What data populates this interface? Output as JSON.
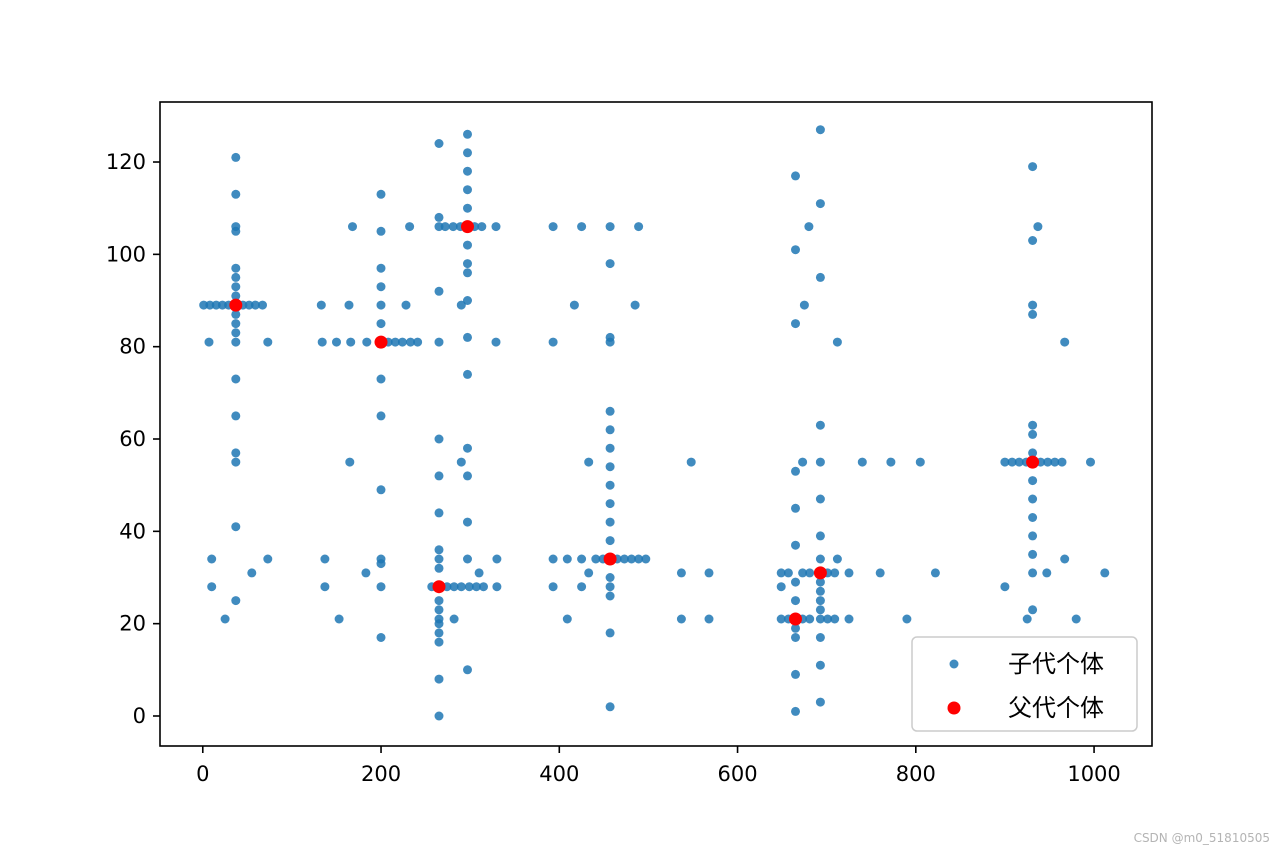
{
  "chart_data": {
    "type": "scatter",
    "xlim": [
      -48,
      1065
    ],
    "ylim": [
      -6.5,
      133
    ],
    "xticks": [
      0,
      200,
      400,
      600,
      800,
      1000
    ],
    "yticks": [
      0,
      20,
      40,
      60,
      80,
      100,
      120
    ],
    "grid": false,
    "legend_position": "bottom-right",
    "series": [
      {
        "name": "子代个体",
        "color": "#1f77b4",
        "points": [
          [
            37,
            121
          ],
          [
            37,
            113
          ],
          [
            37,
            106
          ],
          [
            37,
            105
          ],
          [
            37,
            97
          ],
          [
            37,
            95
          ],
          [
            37,
            93
          ],
          [
            37,
            91
          ],
          [
            37,
            87
          ],
          [
            37,
            85
          ],
          [
            37,
            83
          ],
          [
            37,
            81
          ],
          [
            37,
            73
          ],
          [
            37,
            65
          ],
          [
            37,
            57
          ],
          [
            37,
            55
          ],
          [
            37,
            41
          ],
          [
            37,
            25
          ],
          [
            1,
            89
          ],
          [
            8,
            89
          ],
          [
            15,
            89
          ],
          [
            22,
            89
          ],
          [
            29,
            89
          ],
          [
            45,
            89
          ],
          [
            52,
            89
          ],
          [
            59,
            89
          ],
          [
            67,
            89
          ],
          [
            7,
            81
          ],
          [
            73,
            81
          ],
          [
            10,
            34
          ],
          [
            73,
            34
          ],
          [
            10,
            28
          ],
          [
            25,
            21
          ],
          [
            55,
            31
          ],
          [
            200,
            113
          ],
          [
            200,
            105
          ],
          [
            200,
            97
          ],
          [
            200,
            93
          ],
          [
            200,
            89
          ],
          [
            200,
            85
          ],
          [
            200,
            73
          ],
          [
            200,
            65
          ],
          [
            200,
            49
          ],
          [
            200,
            34
          ],
          [
            200,
            33
          ],
          [
            200,
            28
          ],
          [
            200,
            17
          ],
          [
            134,
            81
          ],
          [
            150,
            81
          ],
          [
            166,
            81
          ],
          [
            184,
            81
          ],
          [
            208,
            81
          ],
          [
            216,
            81
          ],
          [
            224,
            81
          ],
          [
            233,
            81
          ],
          [
            241,
            81
          ],
          [
            168,
            106
          ],
          [
            232,
            106
          ],
          [
            133,
            89
          ],
          [
            164,
            89
          ],
          [
            228,
            89
          ],
          [
            137,
            34
          ],
          [
            137,
            28
          ],
          [
            153,
            21
          ],
          [
            165,
            55
          ],
          [
            183,
            31
          ],
          [
            297,
            126
          ],
          [
            297,
            122
          ],
          [
            297,
            118
          ],
          [
            297,
            114
          ],
          [
            297,
            110
          ],
          [
            297,
            102
          ],
          [
            297,
            98
          ],
          [
            297,
            96
          ],
          [
            297,
            90
          ],
          [
            297,
            82
          ],
          [
            297,
            74
          ],
          [
            297,
            58
          ],
          [
            297,
            52
          ],
          [
            297,
            42
          ],
          [
            297,
            34
          ],
          [
            297,
            10
          ],
          [
            265,
            106
          ],
          [
            272,
            106
          ],
          [
            281,
            106
          ],
          [
            289,
            106
          ],
          [
            305,
            106
          ],
          [
            313,
            106
          ],
          [
            329,
            106
          ],
          [
            265,
            124
          ],
          [
            265,
            108
          ],
          [
            265,
            92
          ],
          [
            265,
            81
          ],
          [
            290,
            89
          ],
          [
            329,
            81
          ],
          [
            290,
            55
          ],
          [
            310,
            31
          ],
          [
            265,
            60
          ],
          [
            265,
            52
          ],
          [
            265,
            44
          ],
          [
            265,
            36
          ],
          [
            265,
            34
          ],
          [
            265,
            32
          ],
          [
            265,
            25
          ],
          [
            265,
            23
          ],
          [
            265,
            21
          ],
          [
            265,
            20
          ],
          [
            265,
            18
          ],
          [
            265,
            16
          ],
          [
            265,
            8
          ],
          [
            265,
            0
          ],
          [
            257,
            28
          ],
          [
            274,
            28
          ],
          [
            282,
            28
          ],
          [
            290,
            28
          ],
          [
            299,
            28
          ],
          [
            307,
            28
          ],
          [
            315,
            28
          ],
          [
            330,
            28
          ],
          [
            330,
            34
          ],
          [
            282,
            21
          ],
          [
            457,
            66
          ],
          [
            457,
            62
          ],
          [
            457,
            58
          ],
          [
            457,
            54
          ],
          [
            457,
            50
          ],
          [
            457,
            46
          ],
          [
            457,
            42
          ],
          [
            457,
            38
          ],
          [
            457,
            30
          ],
          [
            457,
            28
          ],
          [
            457,
            26
          ],
          [
            457,
            18
          ],
          [
            457,
            2
          ],
          [
            457,
            98
          ],
          [
            457,
            82
          ],
          [
            457,
            81
          ],
          [
            457,
            106
          ],
          [
            393,
            34
          ],
          [
            409,
            34
          ],
          [
            425,
            34
          ],
          [
            441,
            34
          ],
          [
            449,
            34
          ],
          [
            465,
            34
          ],
          [
            473,
            34
          ],
          [
            481,
            34
          ],
          [
            489,
            34
          ],
          [
            497,
            34
          ],
          [
            393,
            106
          ],
          [
            425,
            106
          ],
          [
            489,
            106
          ],
          [
            393,
            81
          ],
          [
            417,
            89
          ],
          [
            433,
            55
          ],
          [
            548,
            55
          ],
          [
            433,
            31
          ],
          [
            393,
            28
          ],
          [
            425,
            28
          ],
          [
            409,
            21
          ],
          [
            485,
            89
          ],
          [
            537,
            31
          ],
          [
            568,
            31
          ],
          [
            537,
            21
          ],
          [
            568,
            21
          ],
          [
            693,
            127
          ],
          [
            693,
            111
          ],
          [
            693,
            95
          ],
          [
            693,
            63
          ],
          [
            693,
            55
          ],
          [
            693,
            47
          ],
          [
            693,
            39
          ],
          [
            693,
            34
          ],
          [
            693,
            29
          ],
          [
            693,
            27
          ],
          [
            693,
            25
          ],
          [
            693,
            23
          ],
          [
            693,
            21
          ],
          [
            693,
            17
          ],
          [
            693,
            11
          ],
          [
            693,
            3
          ],
          [
            665,
            117
          ],
          [
            665,
            101
          ],
          [
            665,
            85
          ],
          [
            665,
            53
          ],
          [
            665,
            45
          ],
          [
            665,
            37
          ],
          [
            665,
            29
          ],
          [
            665,
            25
          ],
          [
            665,
            19
          ],
          [
            665,
            17
          ],
          [
            665,
            9
          ],
          [
            665,
            1
          ],
          [
            649,
            31
          ],
          [
            657,
            31
          ],
          [
            673,
            31
          ],
          [
            681,
            31
          ],
          [
            701,
            31
          ],
          [
            709,
            31
          ],
          [
            725,
            31
          ],
          [
            649,
            21
          ],
          [
            657,
            21
          ],
          [
            673,
            21
          ],
          [
            681,
            21
          ],
          [
            701,
            21
          ],
          [
            709,
            21
          ],
          [
            725,
            21
          ],
          [
            680,
            106
          ],
          [
            675,
            89
          ],
          [
            712,
            81
          ],
          [
            673,
            55
          ],
          [
            712,
            34
          ],
          [
            649,
            28
          ],
          [
            740,
            55
          ],
          [
            772,
            55
          ],
          [
            805,
            55
          ],
          [
            760,
            31
          ],
          [
            822,
            31
          ],
          [
            790,
            21
          ],
          [
            931,
            119
          ],
          [
            931,
            103
          ],
          [
            931,
            89
          ],
          [
            931,
            87
          ],
          [
            931,
            63
          ],
          [
            931,
            61
          ],
          [
            931,
            57
          ],
          [
            931,
            51
          ],
          [
            931,
            47
          ],
          [
            931,
            43
          ],
          [
            931,
            39
          ],
          [
            931,
            35
          ],
          [
            931,
            31
          ],
          [
            931,
            23
          ],
          [
            900,
            55
          ],
          [
            908,
            55
          ],
          [
            916,
            55
          ],
          [
            924,
            55
          ],
          [
            940,
            55
          ],
          [
            948,
            55
          ],
          [
            956,
            55
          ],
          [
            964,
            55
          ],
          [
            996,
            55
          ],
          [
            937,
            106
          ],
          [
            967,
            81
          ],
          [
            967,
            34
          ],
          [
            947,
            31
          ],
          [
            1012,
            31
          ],
          [
            900,
            28
          ],
          [
            925,
            21
          ],
          [
            980,
            21
          ]
        ]
      },
      {
        "name": "父代个体",
        "color": "#ff0000",
        "points": [
          [
            37,
            89
          ],
          [
            200,
            81
          ],
          [
            297,
            106
          ],
          [
            265,
            28
          ],
          [
            457,
            34
          ],
          [
            665,
            21
          ],
          [
            693,
            31
          ],
          [
            931,
            55
          ]
        ]
      }
    ]
  },
  "watermark": "CSDN @m0_51810505"
}
